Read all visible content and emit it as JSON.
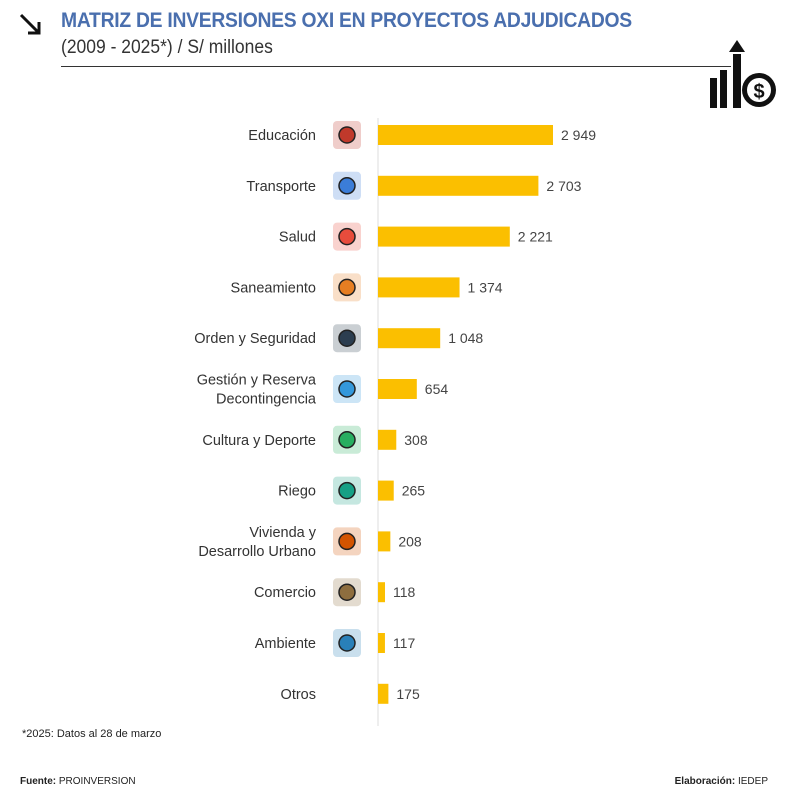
{
  "header": {
    "title": "MATRIZ DE INVERSIONES OXI EN PROYECTOS ADJUDICADOS",
    "subtitle": "(2009 - 2025*) / S/ millones"
  },
  "chart_data": {
    "type": "bar",
    "orientation": "horizontal",
    "categories": [
      "Educación",
      "Transporte",
      "Salud",
      "Saneamiento",
      "Orden y Seguridad",
      "Gestión y Reserva\nDecontingencia",
      "Cultura y Deporte",
      "Riego",
      "Vivienda y\nDesarrollo Urbano",
      "Comercio",
      "Ambiente",
      "Otros"
    ],
    "values": [
      2949,
      2703,
      2221,
      1374,
      1048,
      654,
      308,
      265,
      208,
      118,
      117,
      175
    ],
    "data_labels": [
      "2 949",
      "2 703",
      "2 221",
      "1 374",
      "1 048",
      "654",
      "308",
      "265",
      "208",
      "118",
      "117",
      "175"
    ],
    "icons": [
      "graduation-cap-books-icon",
      "plane-ship-truck-icon",
      "hands-medical-cross-icon",
      "wall-water-icon",
      "police-officer-icon",
      "documents-flow-icon",
      "runner-icon",
      "sprinkler-icon",
      "houses-icon",
      "globe-boxes-icon",
      "island-water-icon",
      ""
    ],
    "bar_color": "#fbbf00",
    "xlim": [
      0,
      3000
    ],
    "grid": false
  },
  "footer": {
    "note": "*2025: Datos al 28 de marzo",
    "source_label": "Fuente:",
    "source": "PROINVERSION",
    "credit_label": "Elaboración:",
    "credit": "IEDEP"
  },
  "colors": {
    "title": "#4a6fae",
    "bar": "#fbbf00"
  }
}
